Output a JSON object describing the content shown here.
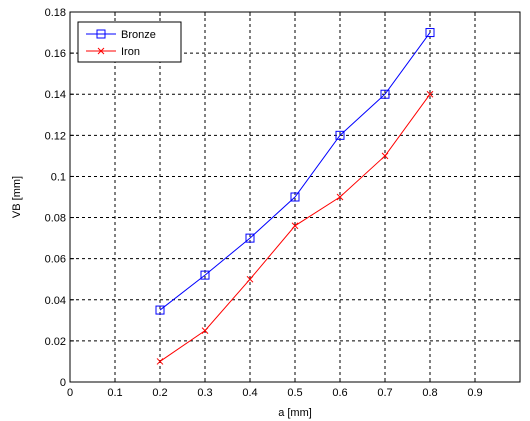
{
  "chart_data": {
    "type": "line",
    "xlabel": "a [mm]",
    "ylabel": "VB [mm]",
    "xlim": [
      0,
      1
    ],
    "ylim": [
      0,
      0.18
    ],
    "x_ticks": [
      0,
      0.1,
      0.2,
      0.3,
      0.4,
      0.5,
      0.6,
      0.7,
      0.8,
      0.9
    ],
    "x_tick_labels": [
      "0",
      "0.1",
      "0.2",
      "0.3",
      "0.4",
      "0.5",
      "0.6",
      "0.7",
      "0.8",
      "0.9"
    ],
    "y_ticks": [
      0,
      0.02,
      0.04,
      0.06,
      0.08,
      0.1,
      0.12,
      0.14,
      0.16,
      0.18
    ],
    "y_tick_labels": [
      "0",
      "0.02",
      "0.04",
      "0.06",
      "0.08",
      "0.1",
      "0.12",
      "0.14",
      "0.16",
      "0.18"
    ],
    "grid": true,
    "legend_position": "top-left",
    "series": [
      {
        "name": "Bronze",
        "color": "#0000ff",
        "marker": "square",
        "x": [
          0.2,
          0.3,
          0.4,
          0.5,
          0.6,
          0.7,
          0.8
        ],
        "y": [
          0.035,
          0.052,
          0.07,
          0.09,
          0.12,
          0.14,
          0.17
        ]
      },
      {
        "name": "Iron",
        "color": "#ff0000",
        "marker": "x",
        "x": [
          0.2,
          0.3,
          0.4,
          0.5,
          0.6,
          0.7,
          0.8
        ],
        "y": [
          0.01,
          0.025,
          0.05,
          0.076,
          0.09,
          0.11,
          0.14
        ]
      }
    ]
  }
}
